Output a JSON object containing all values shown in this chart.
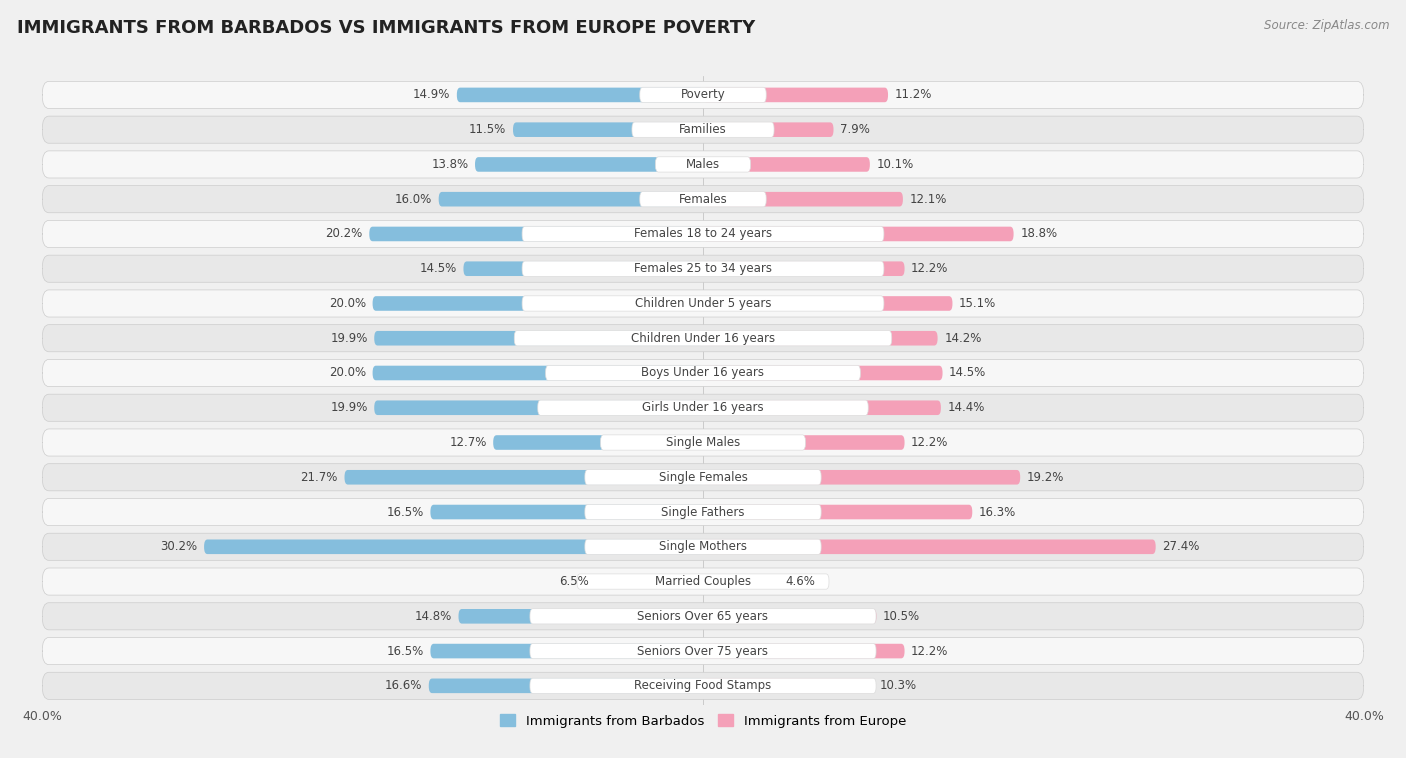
{
  "title": "IMMIGRANTS FROM BARBADOS VS IMMIGRANTS FROM EUROPE POVERTY",
  "source": "Source: ZipAtlas.com",
  "categories": [
    "Poverty",
    "Families",
    "Males",
    "Females",
    "Females 18 to 24 years",
    "Females 25 to 34 years",
    "Children Under 5 years",
    "Children Under 16 years",
    "Boys Under 16 years",
    "Girls Under 16 years",
    "Single Males",
    "Single Females",
    "Single Fathers",
    "Single Mothers",
    "Married Couples",
    "Seniors Over 65 years",
    "Seniors Over 75 years",
    "Receiving Food Stamps"
  ],
  "barbados_values": [
    14.9,
    11.5,
    13.8,
    16.0,
    20.2,
    14.5,
    20.0,
    19.9,
    20.0,
    19.9,
    12.7,
    21.7,
    16.5,
    30.2,
    6.5,
    14.8,
    16.5,
    16.6
  ],
  "europe_values": [
    11.2,
    7.9,
    10.1,
    12.1,
    18.8,
    12.2,
    15.1,
    14.2,
    14.5,
    14.4,
    12.2,
    19.2,
    16.3,
    27.4,
    4.6,
    10.5,
    12.2,
    10.3
  ],
  "barbados_color": "#85bedd",
  "europe_color": "#f4a0b8",
  "background_color": "#f0f0f0",
  "row_light_color": "#f7f7f7",
  "row_dark_color": "#e8e8e8",
  "axis_limit": 40.0,
  "legend_label_barbados": "Immigrants from Barbados",
  "legend_label_europe": "Immigrants from Europe",
  "title_fontsize": 13,
  "label_fontsize": 8.5,
  "value_fontsize": 8.5
}
